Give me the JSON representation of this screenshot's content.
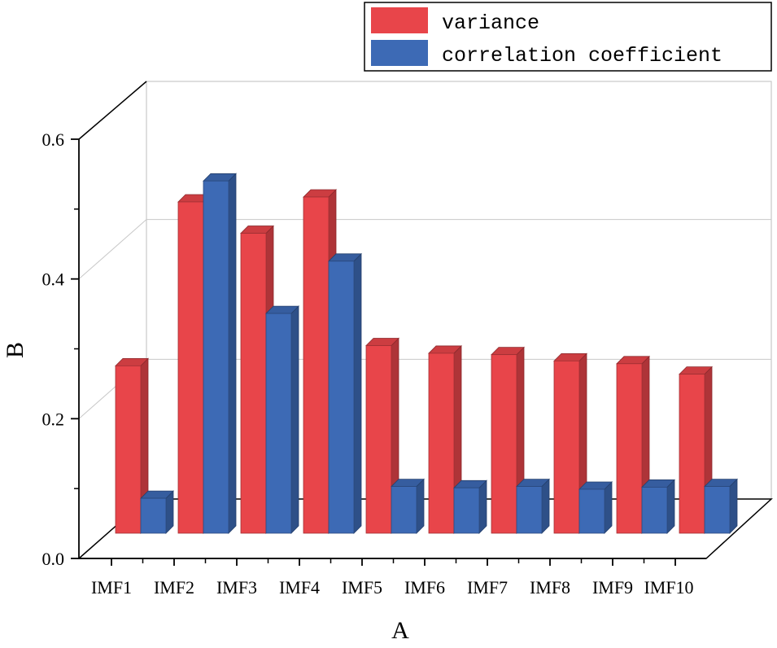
{
  "chart_data": {
    "type": "bar",
    "style": "3d-grouped",
    "xlabel": "A",
    "ylabel": "B",
    "ylim": [
      0,
      0.6
    ],
    "yticks": [
      "0.0",
      "0.2",
      "0.4",
      "0.6"
    ],
    "categories": [
      "IMF1",
      "IMF2",
      "IMF3",
      "IMF4",
      "IMF5",
      "IMF6",
      "IMF7",
      "IMF8",
      "IMF9",
      "IMF10"
    ],
    "series": [
      {
        "name": "variance",
        "color": "#E8454A",
        "values": [
          0.24,
          0.475,
          0.43,
          0.482,
          0.269,
          0.258,
          0.256,
          0.247,
          0.243,
          0.228
        ]
      },
      {
        "name": "correlation coefficient",
        "color": "#3D6AB5",
        "values": [
          0.05,
          0.505,
          0.315,
          0.39,
          0.067,
          0.065,
          0.067,
          0.063,
          0.066,
          0.067
        ]
      }
    ],
    "legend_position": "top-right",
    "grid": true
  }
}
